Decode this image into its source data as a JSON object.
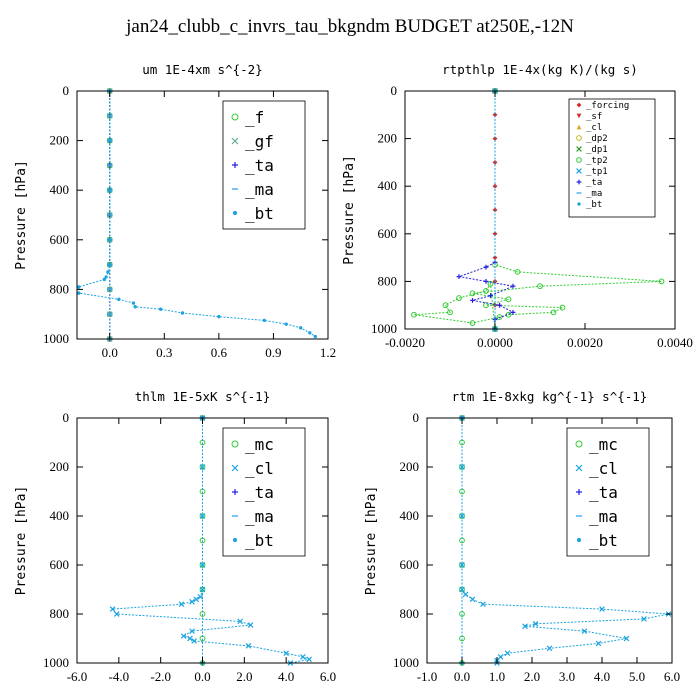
{
  "page_title": "jan24_clubb_c_invrs_tau_bkgndm  BUDGET at250E,-12N",
  "chart_data": [
    {
      "type": "line",
      "title": "um  1E-4xm s^{-2}",
      "ylabel": "Pressure [hPa]",
      "xlim": [
        -0.18,
        1.2
      ],
      "ylim": [
        1000,
        0
      ],
      "xticks": [
        0,
        0.3,
        0.6,
        0.9,
        1.2
      ],
      "xtick_labels": [
        "0.0",
        "0.3",
        "0.6",
        "0.9",
        "1.2"
      ],
      "yticks": [
        0,
        200,
        400,
        600,
        800,
        1000
      ],
      "ytick_labels": [
        "0",
        "200",
        "400",
        "600",
        "800",
        "1000"
      ],
      "legend_position": "top-right",
      "legend_size": "large",
      "series": [
        {
          "name": "_f",
          "color": "#33cc33",
          "marker": "circle",
          "x": [
            0,
            0,
            0,
            0,
            0,
            0,
            0,
            0,
            0,
            0,
            0
          ],
          "y": [
            0,
            100,
            200,
            300,
            400,
            500,
            600,
            700,
            800,
            900,
            1000
          ]
        },
        {
          "name": "_gf",
          "color": "#66aa99",
          "marker": "x",
          "x": [
            0,
            0,
            0,
            0,
            0,
            0,
            0,
            0,
            0,
            0,
            0
          ],
          "y": [
            0,
            100,
            200,
            300,
            400,
            500,
            600,
            700,
            800,
            900,
            1000
          ]
        },
        {
          "name": "_ta",
          "color": "#2222dd",
          "marker": "plus",
          "x": [
            0,
            0,
            0,
            0,
            0,
            0,
            0,
            0,
            0,
            0,
            0
          ],
          "y": [
            0,
            100,
            200,
            300,
            400,
            500,
            600,
            700,
            800,
            900,
            1000
          ]
        },
        {
          "name": "_ma",
          "color": "#44aaee",
          "marker": "dash",
          "x": [
            0,
            0,
            0,
            0,
            0,
            0,
            0,
            0,
            0,
            0,
            0
          ],
          "y": [
            0,
            100,
            200,
            300,
            400,
            500,
            600,
            700,
            800,
            900,
            1000
          ]
        },
        {
          "name": "_bt",
          "color": "#1aa3e0",
          "marker": "dot",
          "x": [
            0,
            0,
            0,
            0,
            0,
            -0.01,
            -0.02,
            -0.03,
            -0.17,
            -0.17,
            0.05,
            0.13,
            0.14,
            0.28,
            0.4,
            0.6,
            0.85,
            0.97,
            1.05,
            1.1,
            1.13
          ],
          "y": [
            0,
            200,
            400,
            600,
            700,
            730,
            750,
            760,
            790,
            815,
            840,
            855,
            870,
            880,
            895,
            910,
            925,
            940,
            955,
            975,
            990
          ]
        }
      ]
    },
    {
      "type": "line",
      "title": "rtpthlp  1E-4x(kg K)/(kg s)",
      "ylabel": "Pressure [hPa]",
      "xlim": [
        -0.002,
        0.004
      ],
      "ylim": [
        1000,
        0
      ],
      "xticks": [
        -0.002,
        0.0,
        0.002,
        0.004
      ],
      "xtick_labels": [
        "-0.0020",
        "0.0000",
        "0.0020",
        "0.0040"
      ],
      "yticks": [
        0,
        200,
        400,
        600,
        800,
        1000
      ],
      "ytick_labels": [
        "0",
        "200",
        "400",
        "600",
        "800",
        "1000"
      ],
      "legend_position": "top-right",
      "legend_size": "small",
      "series": [
        {
          "name": "_forcing",
          "color": "#dd2222",
          "marker": "diamond",
          "x": [
            0,
            0,
            0,
            0,
            0,
            0,
            0,
            0,
            0,
            0,
            0
          ],
          "y": [
            0,
            100,
            200,
            300,
            400,
            500,
            600,
            700,
            800,
            900,
            1000
          ]
        },
        {
          "name": "_sf",
          "color": "#cc3333",
          "marker": "triangle-down",
          "x": [
            0,
            0
          ],
          "y": [
            0,
            1000
          ]
        },
        {
          "name": "_cl",
          "color": "#ddaa22",
          "marker": "triangle-up",
          "x": [
            0,
            0
          ],
          "y": [
            0,
            1000
          ]
        },
        {
          "name": "_dp2",
          "color": "#bbbb22",
          "marker": "circle",
          "x": [
            0,
            0
          ],
          "y": [
            0,
            1000
          ]
        },
        {
          "name": "_dp1",
          "color": "#2c9a2c",
          "marker": "x",
          "x": [
            0,
            0
          ],
          "y": [
            0,
            1000
          ]
        },
        {
          "name": "_tp2",
          "color": "#33cc33",
          "marker": "circle",
          "x": [
            0,
            0,
            0.0005,
            0.0037,
            0.001,
            -0.0005,
            0.0003,
            -0.0002,
            0.0015,
            0.0013,
            0.0003,
            0.0001,
            -0.0005,
            -0.0018,
            -0.001,
            -0.0011,
            -0.0008,
            -0.0002,
            -0.0001,
            0
          ],
          "y": [
            0,
            730,
            760,
            800,
            820,
            850,
            875,
            900,
            910,
            930,
            940,
            950,
            975,
            940,
            930,
            900,
            870,
            840,
            810,
            1000
          ]
        },
        {
          "name": "_tp1",
          "color": "#1aa3e0",
          "marker": "x",
          "x": [
            0,
            0
          ],
          "y": [
            0,
            1000
          ]
        },
        {
          "name": "_ta",
          "color": "#2222dd",
          "marker": "plus",
          "x": [
            0,
            0,
            -0.0002,
            -0.0008,
            -0.0002,
            0.0004,
            -0.0001,
            -0.0005,
            0.0001,
            0.0004,
            0,
            0
          ],
          "y": [
            0,
            720,
            740,
            780,
            800,
            820,
            860,
            880,
            900,
            930,
            960,
            1000
          ]
        },
        {
          "name": "_ma",
          "color": "#44aaee",
          "marker": "dash",
          "x": [
            0,
            0
          ],
          "y": [
            0,
            1000
          ]
        },
        {
          "name": "_bt",
          "color": "#1aa3e0",
          "marker": "dot",
          "x": [
            0,
            0
          ],
          "y": [
            0,
            1000
          ]
        }
      ]
    },
    {
      "type": "line",
      "title": "thlm  1E-5xK s^{-1}",
      "ylabel": "Pressure [hPa]",
      "xlim": [
        -6,
        6
      ],
      "ylim": [
        1000,
        0
      ],
      "xticks": [
        -6,
        -4,
        -2,
        0,
        2,
        4,
        6
      ],
      "xtick_labels": [
        "-6.0",
        "-4.0",
        "-2.0",
        "0.0",
        "2.0",
        "4.0",
        "6.0"
      ],
      "yticks": [
        0,
        200,
        400,
        600,
        800,
        1000
      ],
      "ytick_labels": [
        "0",
        "200",
        "400",
        "600",
        "800",
        "1000"
      ],
      "legend_position": "top-right",
      "legend_size": "large",
      "series": [
        {
          "name": "_mc",
          "color": "#33cc33",
          "marker": "circle",
          "x": [
            0,
            0,
            0,
            0,
            0,
            0,
            0,
            0,
            0,
            0,
            0
          ],
          "y": [
            0,
            100,
            200,
            300,
            400,
            500,
            600,
            700,
            800,
            900,
            1000
          ]
        },
        {
          "name": "_cl",
          "color": "#1aa3e0",
          "marker": "x",
          "x": [
            0,
            0,
            0,
            0,
            0,
            -0.1,
            -0.3,
            -0.5,
            -1.0,
            -4.3,
            -4.1,
            1.8,
            2.3,
            -0.5,
            -0.9,
            -0.6,
            -0.4,
            2.2,
            4.0,
            4.8,
            5.1,
            4.2
          ],
          "y": [
            0,
            200,
            400,
            600,
            700,
            730,
            740,
            750,
            760,
            780,
            800,
            830,
            845,
            870,
            890,
            900,
            910,
            930,
            960,
            975,
            985,
            1000
          ]
        },
        {
          "name": "_ta",
          "color": "#2222dd",
          "marker": "plus",
          "x": [
            0,
            0
          ],
          "y": [
            0,
            1000
          ]
        },
        {
          "name": "_ma",
          "color": "#44aaee",
          "marker": "dash",
          "x": [
            0,
            0
          ],
          "y": [
            0,
            1000
          ]
        },
        {
          "name": "_bt",
          "color": "#1aa3e0",
          "marker": "dot",
          "x": [
            0,
            0
          ],
          "y": [
            0,
            1000
          ]
        }
      ]
    },
    {
      "type": "line",
      "title": "rtm  1E-8xkg kg^{-1} s^{-1}",
      "ylabel": "Pressure [hPa]",
      "xlim": [
        -1,
        6
      ],
      "ylim": [
        1000,
        0
      ],
      "xticks": [
        -1,
        0,
        1,
        2,
        3,
        4,
        5,
        6
      ],
      "xtick_labels": [
        "-1.0",
        "0.0",
        "1.0",
        "2.0",
        "3.0",
        "4.0",
        "5.0",
        "6.0"
      ],
      "yticks": [
        0,
        200,
        400,
        600,
        800,
        1000
      ],
      "ytick_labels": [
        "0",
        "200",
        "400",
        "600",
        "800",
        "1000"
      ],
      "legend_position": "top-right",
      "legend_size": "large",
      "series": [
        {
          "name": "_mc",
          "color": "#33cc33",
          "marker": "circle",
          "x": [
            0,
            0,
            0,
            0,
            0,
            0,
            0,
            0,
            0,
            0,
            0
          ],
          "y": [
            0,
            100,
            200,
            300,
            400,
            500,
            600,
            700,
            800,
            900,
            1000
          ]
        },
        {
          "name": "_cl",
          "color": "#1aa3e0",
          "marker": "x",
          "x": [
            0,
            0,
            0,
            0,
            0,
            0.1,
            0.3,
            0.6,
            4.0,
            5.9,
            5.2,
            2.1,
            1.8,
            3.5,
            4.7,
            3.9,
            2.5,
            1.3,
            1.1,
            1.0,
            1.0
          ],
          "y": [
            0,
            200,
            400,
            600,
            700,
            720,
            740,
            760,
            780,
            800,
            820,
            840,
            850,
            870,
            900,
            920,
            940,
            960,
            975,
            990,
            1000
          ]
        },
        {
          "name": "_ta",
          "color": "#2222dd",
          "marker": "plus",
          "x": [
            0,
            0
          ],
          "y": [
            0,
            1000
          ]
        },
        {
          "name": "_ma",
          "color": "#44aaee",
          "marker": "dash",
          "x": [
            0,
            0
          ],
          "y": [
            0,
            1000
          ]
        },
        {
          "name": "_bt",
          "color": "#1aa3e0",
          "marker": "dot",
          "x": [
            0,
            0
          ],
          "y": [
            0,
            1000
          ]
        }
      ]
    }
  ]
}
